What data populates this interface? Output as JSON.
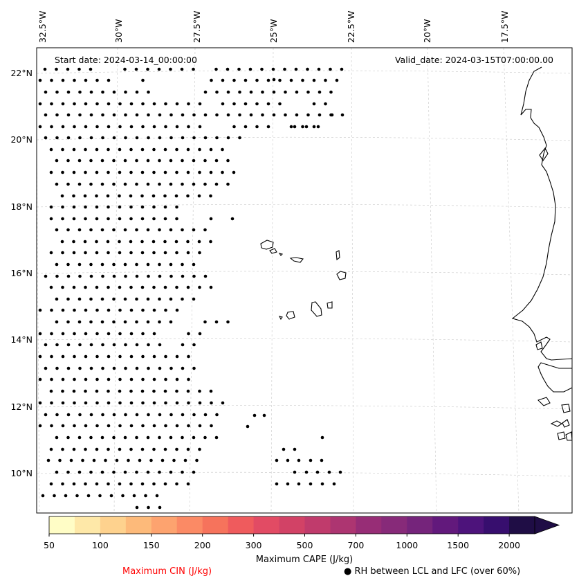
{
  "map": {
    "start_date": "Start date: 2024-03-14_00:00:00",
    "valid_date": "Valid_date: 2024-03-15T07:00:00.00",
    "lon_labels": [
      "32.5°W",
      "30°W",
      "27.5°W",
      "25°W",
      "22.5°W",
      "20°W",
      "17.5°W"
    ],
    "lat_labels": [
      "22°N",
      "20°N",
      "18°N",
      "16°N",
      "14°N",
      "12°N",
      "10°N"
    ],
    "gridlines": true,
    "dot_marker": "filled-black-circle",
    "coast_color": "#000000"
  },
  "colorbar": {
    "label": "Maximum CAPE (J/kg)",
    "ticks": [
      "50",
      "100",
      "150",
      "200",
      "300",
      "500",
      "700",
      "1000",
      "1500",
      "2000"
    ],
    "colors": [
      "#fffdc6",
      "#fee8a8",
      "#fed28e",
      "#fdba7a",
      "#fda36f",
      "#fb8a65",
      "#f6735c",
      "#ef5b5d",
      "#e24b64",
      "#d24266",
      "#c03b6c",
      "#ad3571",
      "#972d76",
      "#872a79",
      "#75247b",
      "#62197c",
      "#4d137b",
      "#370e6e",
      "#1f0d45"
    ],
    "extend": "max"
  },
  "legend": {
    "cin_label": "Maximum CIN (J/kg)",
    "cin_color": "#ff0000",
    "rh_symbol": "●",
    "rh_label": "RH between LCL and LFC (over 60%)"
  }
}
